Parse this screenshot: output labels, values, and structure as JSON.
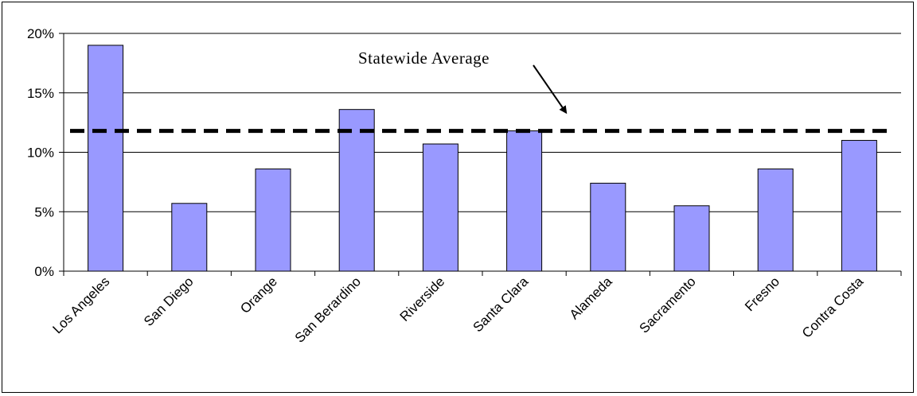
{
  "chart_data": {
    "type": "bar",
    "categories": [
      "Los Angeles",
      "San Diego",
      "Orange",
      "San Berardino",
      "Riverside",
      "Santa Clara",
      "Alameda",
      "Sacramento",
      "Fresno",
      "Contra Costa"
    ],
    "values": [
      19.0,
      5.7,
      8.6,
      13.6,
      10.7,
      11.8,
      7.4,
      5.5,
      8.6,
      11.0
    ],
    "ylim": [
      0,
      20
    ],
    "yticks": [
      0,
      5,
      10,
      15,
      20
    ],
    "ytick_labels": [
      "0%",
      "5%",
      "10%",
      "15%",
      "20%"
    ],
    "grid": true,
    "reference_line": {
      "value": 11.8,
      "label": "Statewide  Average",
      "style": "dashed"
    },
    "bar_color": "#9999ff",
    "title": "",
    "xlabel": "",
    "ylabel": ""
  }
}
